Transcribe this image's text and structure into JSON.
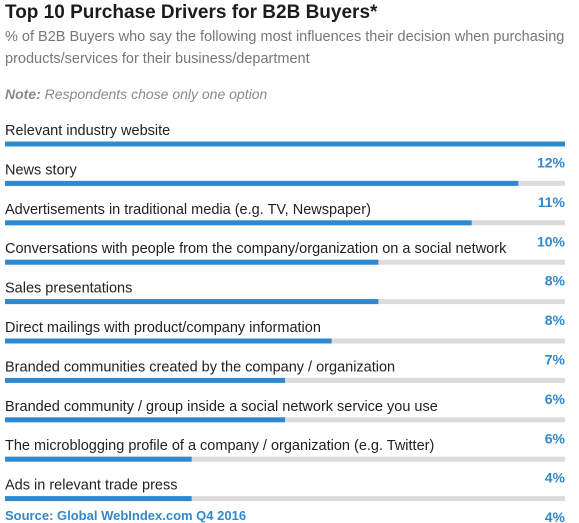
{
  "title": "Top 10 Purchase Drivers for B2B Buyers*",
  "subtitle": "% of B2B Buyers who say the following most influences their decision when purchasing products/services for their business/department",
  "note_label": "Note:",
  "note_text": "Respondents chose only one option",
  "source": "Source: Global WebIndex.com Q4 2016",
  "colors": {
    "bar": "#2f89cf",
    "track": "#dcdcdc",
    "percent": "#2f89cf"
  },
  "chart_data": {
    "type": "bar",
    "orientation": "horizontal",
    "categories": [
      "Relevant industry website",
      "News story",
      "Advertisements in traditional media (e.g. TV, Newspaper)",
      "Conversations with people from the company/organization on a social network",
      "Sales presentations",
      "Direct mailings with product/company information",
      "Branded communities created by the company / organization",
      "Branded community / group inside a social network service you use",
      "The microblogging profile of a company / organization (e.g. Twitter)",
      "Ads in relevant trade press"
    ],
    "values": [
      12,
      11,
      10,
      8,
      8,
      7,
      6,
      6,
      4,
      4
    ],
    "value_labels": [
      "12%",
      "11%",
      "10%",
      "8%",
      "8%",
      "7%",
      "6%",
      "6%",
      "4%",
      "4%"
    ],
    "xlim": [
      0,
      12
    ],
    "grid": false,
    "legend": "none"
  }
}
